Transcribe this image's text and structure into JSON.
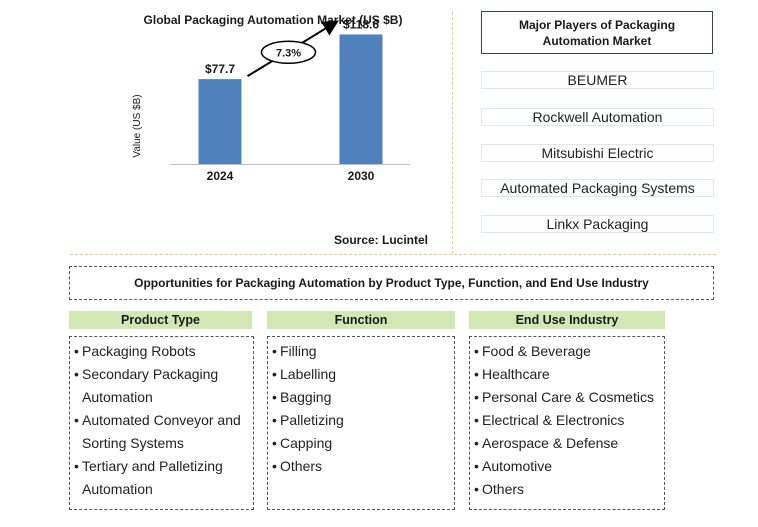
{
  "chart_data": {
    "type": "bar",
    "title": "Global Packaging Automation Market (US $B)",
    "ylabel": "Value (US $B)",
    "xlabel": "",
    "categories": [
      "2024",
      "2030"
    ],
    "values": [
      77.7,
      118.6
    ],
    "value_labels": [
      "$77.7",
      "$118.6"
    ],
    "ylim": [
      0,
      130
    ],
    "grid": false,
    "bar_color": "#4f81bd",
    "annotation": {
      "text": "7.3%",
      "kind": "growth-arrow"
    },
    "source": "Source: Lucintel"
  },
  "players": {
    "title": "Major Players of Packaging Automation Market",
    "items": [
      "BEUMER",
      "Rockwell Automation",
      "Mitsubishi Electric",
      "Automated Packaging Systems",
      "Linkx Packaging"
    ]
  },
  "opportunities": {
    "title": "Opportunities for Packaging Automation by Product Type, Function, and End Use Industry",
    "bullet": "•",
    "columns": [
      {
        "header": "Product Type",
        "items": [
          "Packaging Robots",
          "Secondary Packaging Automation",
          "Automated Conveyor and Sorting Systems",
          "Tertiary and Palletizing Automation"
        ]
      },
      {
        "header": "Function",
        "items": [
          "Filling",
          "Labelling",
          "Bagging",
          "Palletizing",
          "Capping",
          "Others"
        ]
      },
      {
        "header": "End Use Industry",
        "items": [
          "Food & Beverage",
          "Healthcare",
          "Personal Care & Cosmetics",
          "Electrical & Electronics",
          "Aerospace & Defense",
          "Automotive",
          "Others"
        ]
      }
    ]
  },
  "colors": {
    "accent_divider": "#f2c983",
    "header_fill": "#d3e7b4",
    "border_dark": "#36455a"
  }
}
